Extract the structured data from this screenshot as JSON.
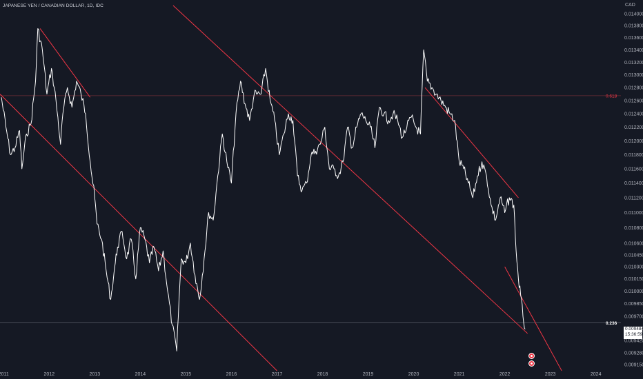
{
  "header": {
    "symbol_title": "JAPANESE YEN / CANADIAN DOLLAR, 1D, IDC",
    "currency": "CAD"
  },
  "price_readout": {
    "price": "0.009484",
    "countdown": "15:36:59"
  },
  "fib_levels": [
    {
      "label": "0.618",
      "value": 0.012675,
      "color": "#f23645"
    },
    {
      "label": "0.236",
      "value": 0.009622,
      "color": "#ffffff"
    }
  ],
  "colors": {
    "background": "#151924",
    "price_line": "#ffffff",
    "trendline": "#f23645",
    "grid": "#2a2e39"
  },
  "chart_data": {
    "type": "line",
    "title": "",
    "xlabel": "",
    "ylabel": "",
    "x_ticks": [
      "2011",
      "2012",
      "2013",
      "2014",
      "2015",
      "2016",
      "2017",
      "2018",
      "2019",
      "2020",
      "2021",
      "2022",
      "2023",
      "2024"
    ],
    "y_ticks": [
      "0.014000",
      "0.013800",
      "0.013600",
      "0.013400",
      "0.013200",
      "0.013000",
      "0.012800",
      "0.012600",
      "0.012400",
      "0.012200",
      "0.012000",
      "0.011800",
      "0.011600",
      "0.011400",
      "0.011200",
      "0.011000",
      "0.010800",
      "0.010600",
      "0.010450",
      "0.010300",
      "0.010150",
      "0.010000",
      "0.009850",
      "0.009700",
      "0.009560",
      "0.009420",
      "0.009280",
      "0.009150"
    ],
    "ylim": [
      0.00908,
      0.01414
    ],
    "xlim": [
      2010.92,
      2024.55
    ],
    "log_scale": true,
    "grid": false,
    "series": [
      {
        "x": [
          2010.95,
          2011.05,
          2011.15,
          2011.25,
          2011.35,
          2011.4,
          2011.5,
          2011.6,
          2011.7,
          2011.75,
          2011.85,
          2011.95,
          2012.05,
          2012.15,
          2012.25,
          2012.3,
          2012.4,
          2012.5,
          2012.6,
          2012.7,
          2012.8,
          2012.9,
          2013.0,
          2013.05,
          2013.15,
          2013.25,
          2013.35,
          2013.45,
          2013.5,
          2013.6,
          2013.7,
          2013.8,
          2013.9,
          2014.0,
          2014.1,
          2014.2,
          2014.3,
          2014.4,
          2014.5,
          2014.6,
          2014.7,
          2014.8,
          2014.85,
          2014.9,
          2015.0,
          2015.1,
          2015.2,
          2015.3,
          2015.4,
          2015.5,
          2015.6,
          2015.7,
          2015.8,
          2015.9,
          2016.0,
          2016.1,
          2016.2,
          2016.3,
          2016.4,
          2016.5,
          2016.55,
          2016.65,
          2016.75,
          2016.85,
          2016.95,
          2017.05,
          2017.15,
          2017.25,
          2017.35,
          2017.45,
          2017.55,
          2017.65,
          2017.75,
          2017.85,
          2017.95,
          2018.05,
          2018.15,
          2018.25,
          2018.35,
          2018.45,
          2018.55,
          2018.65,
          2018.75,
          2018.85,
          2018.95,
          2019.05,
          2019.15,
          2019.25,
          2019.35,
          2019.45,
          2019.55,
          2019.65,
          2019.75,
          2019.85,
          2019.95,
          2020.05,
          2020.15,
          2020.22,
          2020.3,
          2020.4,
          2020.5,
          2020.6,
          2020.7,
          2020.8,
          2020.9,
          2021.0,
          2021.1,
          2021.2,
          2021.3,
          2021.4,
          2021.5,
          2021.6,
          2021.7,
          2021.8,
          2021.9,
          2022.0,
          2022.1,
          2022.2,
          2022.25,
          2022.3,
          2022.35,
          2022.4,
          2022.45
        ],
        "y": [
          0.01265,
          0.0122,
          0.0118,
          0.0119,
          0.01215,
          0.0116,
          0.0121,
          0.01225,
          0.0129,
          0.01375,
          0.0134,
          0.0127,
          0.0131,
          0.0126,
          0.01195,
          0.0124,
          0.0128,
          0.0125,
          0.0129,
          0.0127,
          0.0124,
          0.0117,
          0.0112,
          0.01085,
          0.01065,
          0.01025,
          0.0099,
          0.01035,
          0.01055,
          0.01075,
          0.0104,
          0.01065,
          0.01015,
          0.0108,
          0.01065,
          0.01035,
          0.01055,
          0.01025,
          0.0105,
          0.01,
          0.0096,
          0.0093,
          0.0099,
          0.0104,
          0.01035,
          0.0106,
          0.0102,
          0.0099,
          0.0104,
          0.011,
          0.0109,
          0.0115,
          0.0121,
          0.0117,
          0.0114,
          0.0124,
          0.0129,
          0.01255,
          0.0123,
          0.0127,
          0.0127,
          0.0127,
          0.0131,
          0.0126,
          0.0123,
          0.0118,
          0.0121,
          0.0124,
          0.0123,
          0.0115,
          0.0113,
          0.0114,
          0.0118,
          0.01185,
          0.01195,
          0.0122,
          0.0116,
          0.0116,
          0.0115,
          0.0117,
          0.0122,
          0.0119,
          0.0122,
          0.0124,
          0.0123,
          0.0122,
          0.0119,
          0.0125,
          0.0124,
          0.0123,
          0.0124,
          0.0123,
          0.01205,
          0.0122,
          0.01235,
          0.0122,
          0.0121,
          0.0134,
          0.0129,
          0.0128,
          0.0127,
          0.0126,
          0.0125,
          0.0124,
          0.0123,
          0.0117,
          0.0116,
          0.0114,
          0.0112,
          0.0115,
          0.0117,
          0.0115,
          0.0111,
          0.0109,
          0.0112,
          0.011,
          0.0112,
          0.0111,
          0.0105,
          0.01015,
          0.00995,
          0.0097,
          0.00955
        ]
      }
    ],
    "trendlines": [
      {
        "x": [
          2011.8,
          2012.9
        ],
        "y": [
          0.01375,
          0.01265
        ]
      },
      {
        "x": [
          2010.92,
          2017.0
        ],
        "y": [
          0.0127,
          0.00908
        ]
      },
      {
        "x": [
          2014.72,
          2022.5
        ],
        "y": [
          0.01414,
          0.0095
        ]
      },
      {
        "x": [
          2020.25,
          2022.3
        ],
        "y": [
          0.0128,
          0.0112
        ]
      },
      {
        "x": [
          2022.0,
          2023.25
        ],
        "y": [
          0.0103,
          0.00908
        ]
      }
    ]
  }
}
